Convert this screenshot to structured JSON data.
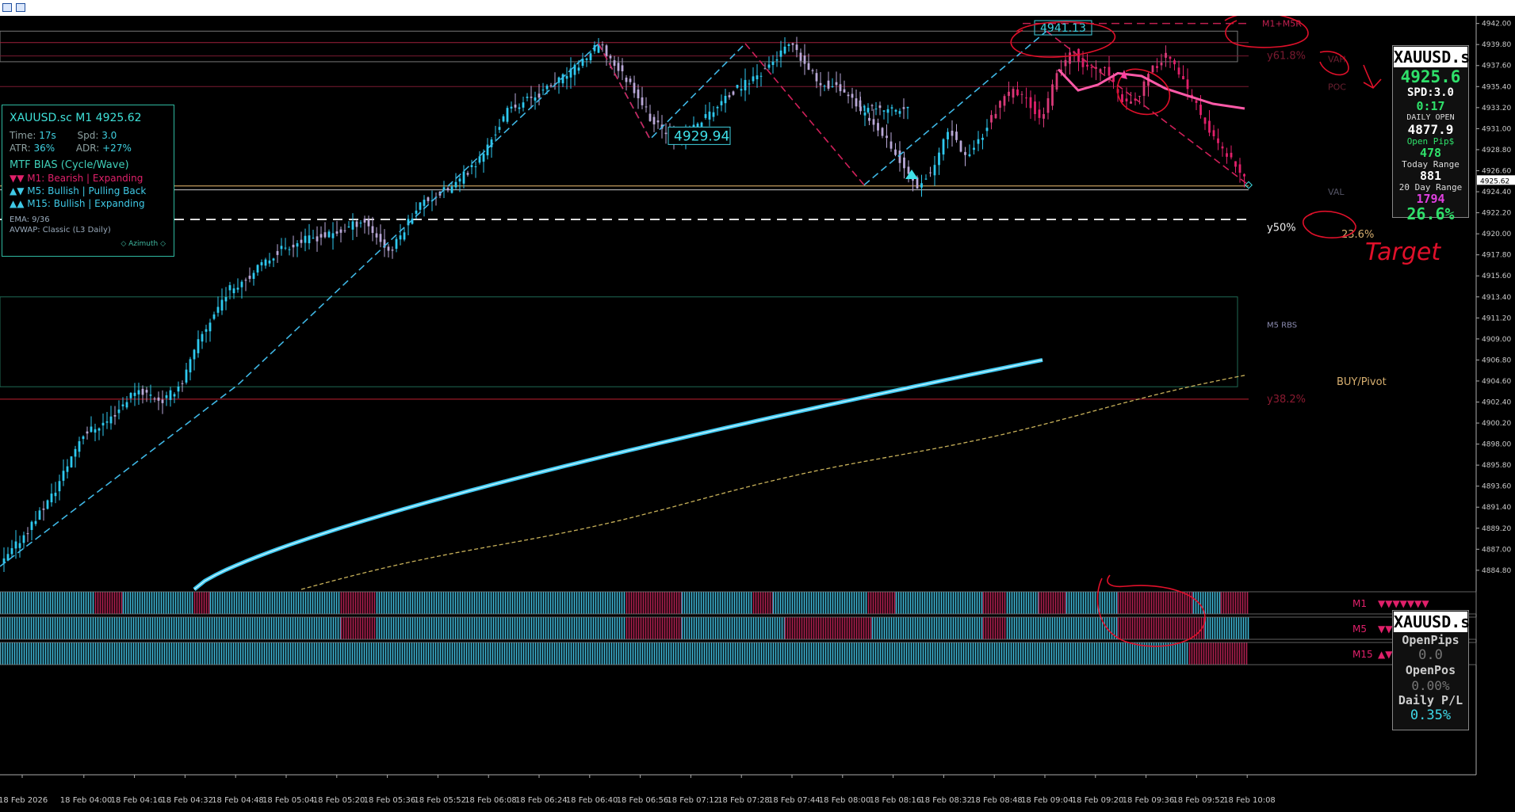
{
  "toolbar": {
    "icons": [
      "table-icon",
      "chart-icon"
    ]
  },
  "info_panel": {
    "title": "XAUUSD.sc M1 4925.62",
    "time_label": "Time:",
    "time_value": "17s",
    "spd_label": "Spd:",
    "spd_value": "3.0",
    "atr_label": "ATR:",
    "atr_value": "36%",
    "adr_label": "ADR:",
    "adr_value": "+27%",
    "bias_title": "MTF BIAS (Cycle/Wave)",
    "bias": [
      {
        "tf": "M1",
        "text": "M1: Bearish | Expanding",
        "glyph": "▼▼",
        "color": "#e0206a"
      },
      {
        "tf": "M5",
        "text": "M5: Bullish | Pulling Back",
        "glyph": "▲▼",
        "color": "#3fc9e6"
      },
      {
        "tf": "M15",
        "text": "M15: Bullish | Expanding",
        "glyph": "▲▲",
        "color": "#3fc9e6"
      }
    ],
    "ema": "EMA: 9/36",
    "avwap": "AVWAP: Classic (L3 Daily)",
    "brand": "◇ Azimuth ◇"
  },
  "box_top": {
    "symbol": "XAUUSD.s",
    "price": "4925.6",
    "spread": "SPD:3.0",
    "timer": "0:17",
    "daily_open_label": "DAILY OPEN",
    "daily_open": "4877.9",
    "open_pips_label": "Open Pip$",
    "open_pips": "478",
    "today_range_label": "Today Range",
    "today_range": "881",
    "day20_range_label": "20 Day Range",
    "day20_range": "1794",
    "pct": "26.6%"
  },
  "box_bottom": {
    "symbol": "XAUUSD.s",
    "open_pips_label": "OpenPips",
    "open_pips": "0.0",
    "open_pos_label": "OpenPos",
    "open_pos": "0.00%",
    "daily_pl_label": "Daily P/L",
    "daily_pl": "0.35%"
  },
  "chart_data": {
    "type": "candlestick",
    "symbol": "XAUUSD.sc",
    "timeframe": "M1",
    "ylim": [
      4882.8,
      4942.8
    ],
    "price_ticks": [
      4942.0,
      4939.8,
      4937.6,
      4935.4,
      4933.2,
      4931.0,
      4928.8,
      4926.6,
      4924.4,
      4922.2,
      4920.0,
      4917.8,
      4915.6,
      4913.4,
      4911.2,
      4909.0,
      4906.8,
      4904.6,
      4902.4,
      4900.2,
      4898.0,
      4895.8,
      4893.6,
      4891.4,
      4889.2,
      4887.0,
      4884.8
    ],
    "current_price": "4925.62",
    "time_labels": [
      "18 Feb 2026",
      "18 Feb 04:00",
      "18 Feb 04:16",
      "18 Feb 04:32",
      "18 Feb 04:48",
      "18 Feb 05:04",
      "18 Feb 05:20",
      "18 Feb 05:36",
      "18 Feb 05:52",
      "18 Feb 06:08",
      "18 Feb 06:24",
      "18 Feb 06:40",
      "18 Feb 06:56",
      "18 Feb 07:12",
      "18 Feb 07:28",
      "18 Feb 07:44",
      "18 Feb 08:00",
      "18 Feb 08:16",
      "18 Feb 08:32",
      "18 Feb 08:48",
      "18 Feb 09:04",
      "18 Feb 09:20",
      "18 Feb 09:36",
      "18 Feb 09:52",
      "18 Feb 10:08"
    ],
    "price_path": [
      [
        0,
        4885.2
      ],
      [
        0.03,
        4889
      ],
      [
        0.06,
        4893
      ],
      [
        0.09,
        4899
      ],
      [
        0.12,
        4900.5
      ],
      [
        0.15,
        4903.8
      ],
      [
        0.18,
        4902.5
      ],
      [
        0.2,
        4904.4
      ],
      [
        0.22,
        4909
      ],
      [
        0.25,
        4914
      ],
      [
        0.28,
        4916
      ],
      [
        0.31,
        4918.5
      ],
      [
        0.34,
        4919.5
      ],
      [
        0.37,
        4920
      ],
      [
        0.4,
        4921.5
      ],
      [
        0.43,
        4918
      ],
      [
        0.46,
        4923
      ],
      [
        0.5,
        4925
      ],
      [
        0.53,
        4928
      ],
      [
        0.56,
        4933
      ],
      [
        0.6,
        4935
      ],
      [
        0.63,
        4937
      ],
      [
        0.66,
        4939.8
      ],
      [
        0.7,
        4935
      ],
      [
        0.72,
        4931.5
      ],
      [
        0.75,
        4929.9
      ],
      [
        0.78,
        4932.5
      ],
      [
        0.81,
        4935
      ],
      [
        0.84,
        4937
      ],
      [
        0.87,
        4939.8
      ],
      [
        0.9,
        4936
      ],
      [
        0.93,
        4935
      ],
      [
        0.95,
        4933
      ]
    ],
    "price_path2": [
      [
        0,
        4933
      ],
      [
        0.04,
        4932
      ],
      [
        0.08,
        4930
      ],
      [
        0.12,
        4927
      ],
      [
        0.16,
        4925
      ],
      [
        0.2,
        4927
      ],
      [
        0.24,
        4931
      ],
      [
        0.28,
        4928
      ],
      [
        0.32,
        4930
      ],
      [
        0.36,
        4933
      ],
      [
        0.4,
        4935
      ],
      [
        0.44,
        4934
      ],
      [
        0.48,
        4932
      ],
      [
        0.52,
        4937
      ],
      [
        0.56,
        4939
      ],
      [
        0.6,
        4937
      ],
      [
        0.64,
        4937.5
      ],
      [
        0.68,
        4934
      ],
      [
        0.72,
        4934
      ],
      [
        0.76,
        4937
      ],
      [
        0.8,
        4939
      ],
      [
        0.84,
        4936
      ],
      [
        0.88,
        4933
      ],
      [
        0.92,
        4930
      ],
      [
        0.96,
        4928
      ],
      [
        1.0,
        4925.6
      ]
    ],
    "labels": {
      "swing_low": "4929.94",
      "swing_high": "4941.13",
      "y618": "y61.8%",
      "y50": "y50%",
      "y382": "y38.2%",
      "fib236": "23.6%",
      "vah": "VAH",
      "poc": "POC",
      "val": "VAL",
      "m1m5r": "M1+M5R",
      "m5rbs": "M5 RBS",
      "buy_pivot": "BUY/Pivot",
      "target": "Target"
    },
    "levels": {
      "y618": 4938.6,
      "poc": 4935.4,
      "val": 4925.0,
      "y50": 4921.5,
      "y382": 4902.7,
      "vah": 4939.0
    },
    "bias_rows": [
      {
        "label": "M1",
        "glyphs": "▼▼▼▼▼▼▼"
      },
      {
        "label": "M5",
        "glyphs": "▼▼▼▼▼▼▼"
      },
      {
        "label": "M15",
        "glyphs": "▲▼▼▼▼▼▽▽"
      }
    ]
  }
}
